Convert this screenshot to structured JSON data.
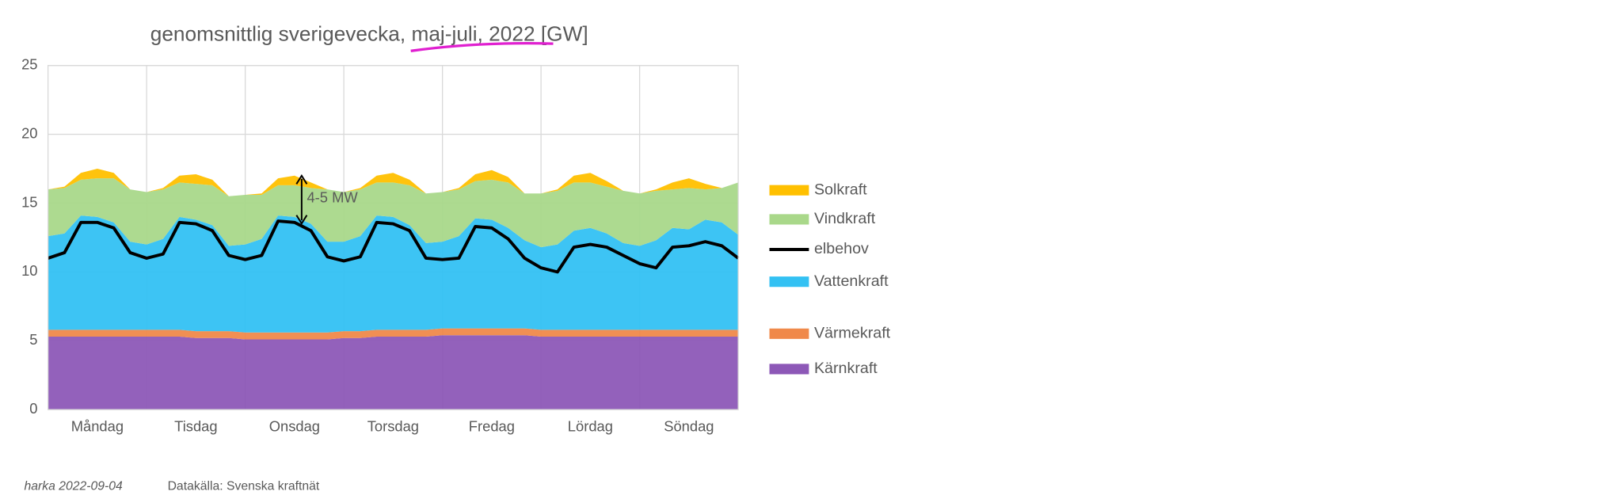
{
  "chart_data": {
    "type": "stacked-area",
    "title": "genomsnittlig sverigevecka, maj-juli, 2022 [GW]",
    "annotation": "4-5 MW",
    "footer_author": "harka 2022-09-04",
    "footer_source": "Datakälla: Svenska kraftnät",
    "x": [
      0,
      4,
      8,
      12,
      16,
      20,
      24,
      28,
      32,
      36,
      40,
      44,
      48,
      52,
      56,
      60,
      64,
      68,
      72,
      76,
      80,
      84,
      88,
      92,
      96,
      100,
      104,
      108,
      112,
      116,
      120,
      124,
      128,
      132,
      136,
      140,
      144,
      148,
      152,
      156,
      160,
      164,
      168
    ],
    "xlim": [
      0,
      168
    ],
    "xticks": [
      {
        "value": 12,
        "label": "Måndag"
      },
      {
        "value": 36,
        "label": "Tisdag"
      },
      {
        "value": 60,
        "label": "Onsdag"
      },
      {
        "value": 84,
        "label": "Torsdag"
      },
      {
        "value": 108,
        "label": "Fredag"
      },
      {
        "value": 132,
        "label": "Lördag"
      },
      {
        "value": 156,
        "label": "Söndag"
      }
    ],
    "ylim": [
      0,
      25
    ],
    "yticks": [
      0,
      5,
      10,
      15,
      20,
      25
    ],
    "grid": true,
    "legend": "right",
    "series": [
      {
        "name": "Solkraft",
        "color": "#ffc000",
        "kind": "area",
        "values": [
          0,
          0.1,
          0.5,
          0.7,
          0.4,
          0,
          0,
          0.1,
          0.5,
          0.7,
          0.4,
          0,
          0,
          0.1,
          0.5,
          0.7,
          0.4,
          0,
          0,
          0.1,
          0.5,
          0.7,
          0.4,
          0,
          0,
          0.1,
          0.5,
          0.7,
          0.4,
          0,
          0,
          0.1,
          0.5,
          0.7,
          0.4,
          0,
          0,
          0.1,
          0.5,
          0.7,
          0.4,
          0,
          0
        ]
      },
      {
        "name": "Vindkraft",
        "color": "#a9d88a",
        "kind": "area",
        "values": [
          3.4,
          3.3,
          2.6,
          2.8,
          3.2,
          3.8,
          3.8,
          3.6,
          2.5,
          2.6,
          2.9,
          3.6,
          3.6,
          3.2,
          2.2,
          2.3,
          2.6,
          3.8,
          3.6,
          3.4,
          2.4,
          2.5,
          2.9,
          3.6,
          3.6,
          3.4,
          2.7,
          2.9,
          3.3,
          3.4,
          3.9,
          3.9,
          3.5,
          3.3,
          3.4,
          3.8,
          3.8,
          3.6,
          2.8,
          3.0,
          2.2,
          2.5,
          3.8
        ]
      },
      {
        "name": "elbehov",
        "color": "#000000",
        "kind": "line",
        "values": [
          11.0,
          11.4,
          13.6,
          13.6,
          13.2,
          11.4,
          11.0,
          11.3,
          13.6,
          13.5,
          13.0,
          11.2,
          10.9,
          11.2,
          13.7,
          13.6,
          13.0,
          11.1,
          10.8,
          11.1,
          13.6,
          13.5,
          13.0,
          11.0,
          10.9,
          11.0,
          13.3,
          13.2,
          12.4,
          11.0,
          10.3,
          10.0,
          11.8,
          12.0,
          11.8,
          11.2,
          10.6,
          10.3,
          11.8,
          11.9,
          12.2,
          11.9,
          11.0
        ]
      },
      {
        "name": "Vattenkraft",
        "color": "#33c1f3",
        "kind": "area",
        "values": [
          6.8,
          7.0,
          8.3,
          8.2,
          7.8,
          6.4,
          6.2,
          6.6,
          8.2,
          8.1,
          7.7,
          6.2,
          6.4,
          6.8,
          8.5,
          8.4,
          7.9,
          6.6,
          6.5,
          6.9,
          8.3,
          8.2,
          7.6,
          6.3,
          6.3,
          6.7,
          8.0,
          7.9,
          7.3,
          6.4,
          6.0,
          6.2,
          7.2,
          7.4,
          7.0,
          6.3,
          6.1,
          6.5,
          7.4,
          7.3,
          8.0,
          7.8,
          6.9
        ]
      },
      {
        "name": "Värmekraft",
        "color": "#f0894a",
        "kind": "area",
        "values": [
          0.5,
          0.5,
          0.5,
          0.5,
          0.5,
          0.5,
          0.5,
          0.5,
          0.5,
          0.5,
          0.5,
          0.5,
          0.5,
          0.5,
          0.5,
          0.5,
          0.5,
          0.5,
          0.5,
          0.5,
          0.5,
          0.5,
          0.5,
          0.5,
          0.5,
          0.5,
          0.5,
          0.5,
          0.5,
          0.5,
          0.5,
          0.5,
          0.5,
          0.5,
          0.5,
          0.5,
          0.5,
          0.5,
          0.5,
          0.5,
          0.5,
          0.5,
          0.5
        ]
      },
      {
        "name": "Kärnkraft",
        "color": "#8d58b7",
        "kind": "area",
        "values": [
          5.3,
          5.3,
          5.3,
          5.3,
          5.3,
          5.3,
          5.3,
          5.3,
          5.3,
          5.2,
          5.2,
          5.2,
          5.1,
          5.1,
          5.1,
          5.1,
          5.1,
          5.1,
          5.2,
          5.2,
          5.3,
          5.3,
          5.3,
          5.3,
          5.4,
          5.4,
          5.4,
          5.4,
          5.4,
          5.4,
          5.3,
          5.3,
          5.3,
          5.3,
          5.3,
          5.3,
          5.3,
          5.3,
          5.3,
          5.3,
          5.3,
          5.3,
          5.3
        ]
      }
    ]
  }
}
